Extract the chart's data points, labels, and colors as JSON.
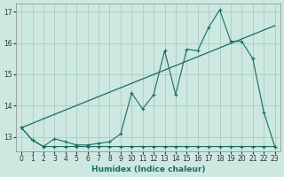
{
  "xlabel": "Humidex (Indice chaleur)",
  "bg_color": "#cce8e0",
  "grid_color": "#aaccc4",
  "line_color": "#1a6e5e",
  "xlim": [
    -0.5,
    23.5
  ],
  "ylim": [
    12.55,
    17.25
  ],
  "yticks": [
    13,
    14,
    15,
    16,
    17
  ],
  "xticks": [
    0,
    1,
    2,
    3,
    4,
    5,
    6,
    7,
    8,
    9,
    10,
    11,
    12,
    13,
    14,
    15,
    16,
    17,
    18,
    19,
    20,
    21,
    22,
    23
  ],
  "line_wavy_x": [
    0,
    1,
    2,
    3,
    4,
    5,
    6,
    7,
    8,
    9,
    10,
    11,
    12,
    13,
    14,
    15,
    16,
    17,
    18,
    19,
    20,
    21,
    22,
    23
  ],
  "line_wavy_y": [
    13.3,
    12.9,
    12.7,
    12.95,
    12.85,
    12.75,
    12.75,
    12.8,
    12.85,
    13.1,
    14.4,
    13.9,
    14.35,
    15.75,
    14.35,
    15.8,
    15.75,
    16.5,
    17.05,
    16.05,
    16.05,
    15.5,
    13.8,
    12.7
  ],
  "line_trend_x": [
    0,
    23
  ],
  "line_trend_y": [
    13.3,
    16.55
  ],
  "line_flat_x": [
    0,
    1,
    2,
    3,
    4,
    5,
    6,
    7,
    8,
    9,
    10,
    11,
    12,
    13,
    14,
    15,
    16,
    17,
    18,
    19,
    20,
    21,
    22,
    23
  ],
  "line_flat_y": [
    13.3,
    12.9,
    12.7,
    12.7,
    12.7,
    12.7,
    12.7,
    12.7,
    12.7,
    12.7,
    12.7,
    12.7,
    12.7,
    12.7,
    12.7,
    12.7,
    12.7,
    12.7,
    12.7,
    12.7,
    12.7,
    12.7,
    12.7,
    12.7
  ]
}
